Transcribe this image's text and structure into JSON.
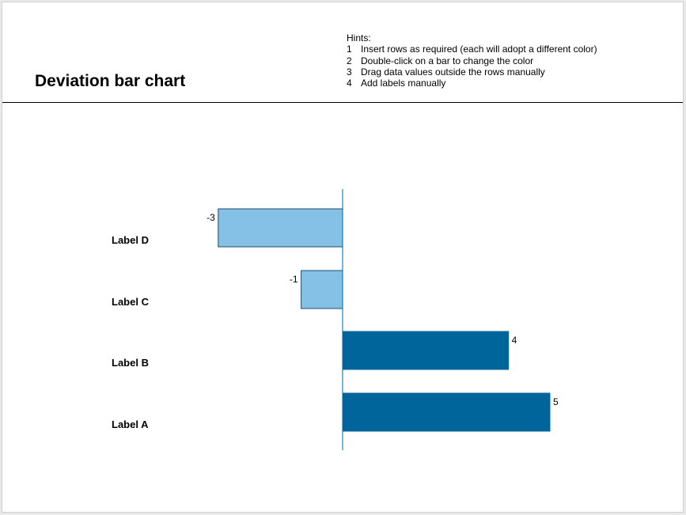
{
  "slide": {
    "title": "Deviation bar chart",
    "hints_heading": "Hints:",
    "hints": [
      {
        "num": "1",
        "text": "Insert rows as required (each will adopt a different color)"
      },
      {
        "num": "2",
        "text": "Double-click on a bar to change the color"
      },
      {
        "num": "3",
        "text": "Drag data values outside the rows manually"
      },
      {
        "num": "4",
        "text": "Add labels manually"
      }
    ]
  },
  "chart_data": {
    "type": "bar",
    "orientation": "horizontal",
    "categories": [
      "Label D",
      "Label C",
      "Label B",
      "Label A"
    ],
    "values": [
      -3,
      -1,
      4,
      5
    ],
    "value_labels": [
      "-3",
      "-1",
      "4",
      "5"
    ],
    "xlim": [
      -3,
      5
    ],
    "grid": false,
    "colors": {
      "negative": "#85c1e6",
      "positive": "#00659b",
      "axis": "#00659b",
      "bar_border": "#1b4d6b"
    }
  }
}
